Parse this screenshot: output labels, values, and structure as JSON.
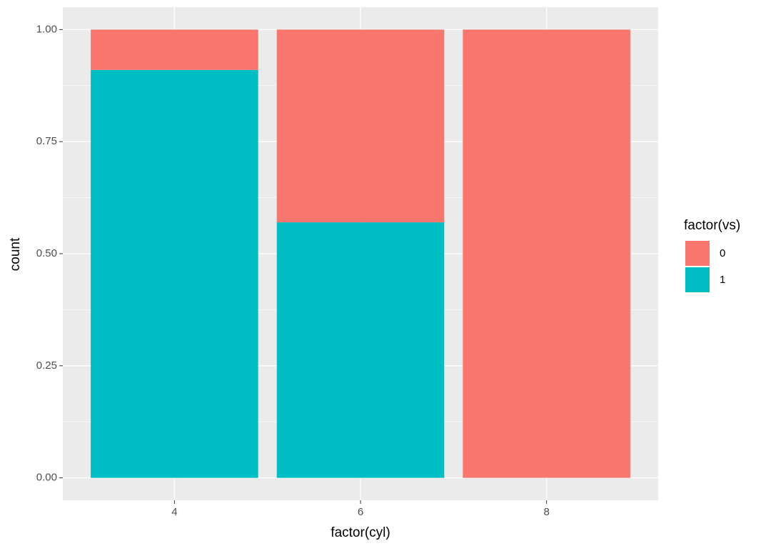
{
  "chart_data": {
    "type": "bar",
    "stacked": true,
    "x_label": "factor(cyl)",
    "y_label": "count",
    "categories": [
      "4",
      "6",
      "8"
    ],
    "series": [
      {
        "name": "0",
        "color": "#F8766D",
        "values": [
          0.09,
          0.43,
          1
        ]
      },
      {
        "name": "1",
        "color": "#00BFC4",
        "values": [
          0.91,
          0.57,
          0
        ]
      }
    ],
    "legend_title": "factor(vs)",
    "ylim": [
      -0.05,
      1.05
    ],
    "yticks": [
      {
        "value": 0,
        "label": "0.00"
      },
      {
        "value": 0.25,
        "label": "0.25"
      },
      {
        "value": 0.5,
        "label": "0.50"
      },
      {
        "value": 0.75,
        "label": "0.75"
      },
      {
        "value": 1,
        "label": "1.00"
      }
    ],
    "grid": true,
    "legend": "right"
  }
}
